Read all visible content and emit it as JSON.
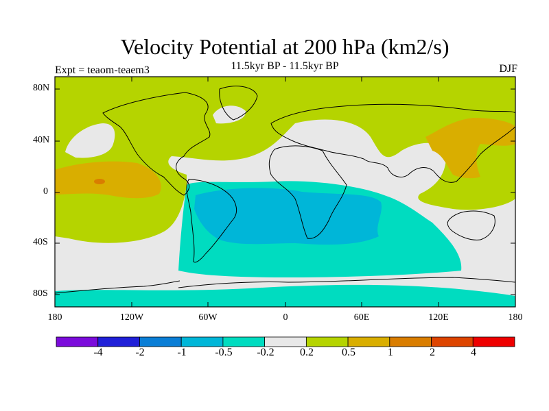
{
  "title": "Velocity Potential at 200 hPa (km2/s)",
  "subtitle": "11.5kyr BP - 11.5kyr BP",
  "experiment": "Expt = teaom-teaem3",
  "season": "DJF",
  "map": {
    "lat_labels": [
      "80N",
      "40N",
      "0",
      "40S",
      "80S"
    ],
    "lon_labels": [
      "180",
      "120W",
      "60W",
      "0",
      "60E",
      "120E",
      "180"
    ]
  },
  "colorbar": {
    "colors": [
      "#7b0bdb",
      "#2020d8",
      "#0a7ed6",
      "#00b6d8",
      "#00dcc0",
      "#e8e8e8",
      "#b5d400",
      "#d9ae00",
      "#d97d00",
      "#dd4400",
      "#ee0000"
    ],
    "labels": [
      "-4",
      "-2",
      "-1",
      "-0.5",
      "-0.2",
      "0.2",
      "0.5",
      "1",
      "2",
      "4"
    ]
  }
}
